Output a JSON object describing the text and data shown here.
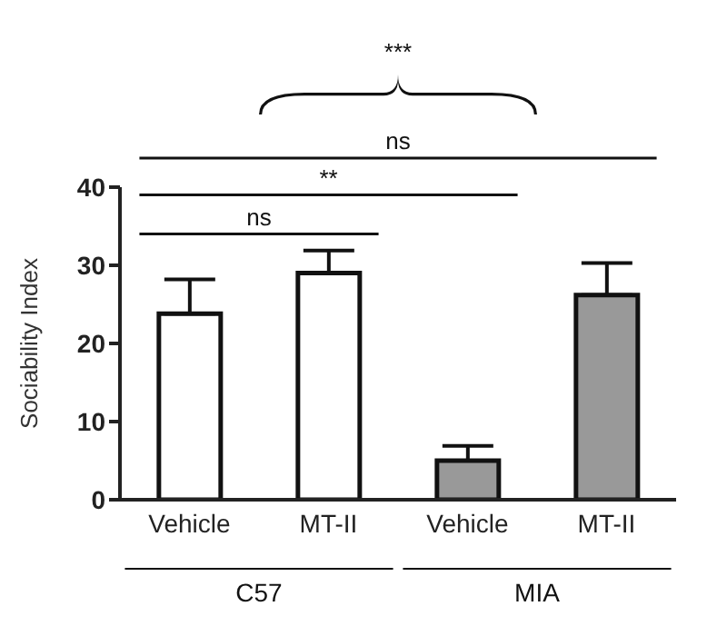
{
  "chart_data": {
    "type": "bar",
    "ylabel": "Sociability Index",
    "categories": [
      "Vehicle",
      "MT-II",
      "Vehicle",
      "MT-II"
    ],
    "values": [
      23.8,
      29,
      5,
      26.2
    ],
    "colors": [
      "#ffffff",
      "#ffffff",
      "#999999",
      "#999999"
    ],
    "errors": [
      [
        23.8,
        28.2
      ],
      [
        29,
        31.9
      ],
      [
        5,
        6.9
      ],
      [
        26.2,
        30.3
      ]
    ],
    "ylim": [
      0,
      40
    ],
    "yticks": [
      0,
      10,
      20,
      30,
      40
    ],
    "annotations": [
      "ns",
      "**",
      "ns",
      "***",
      "C57",
      "MIA"
    ]
  }
}
